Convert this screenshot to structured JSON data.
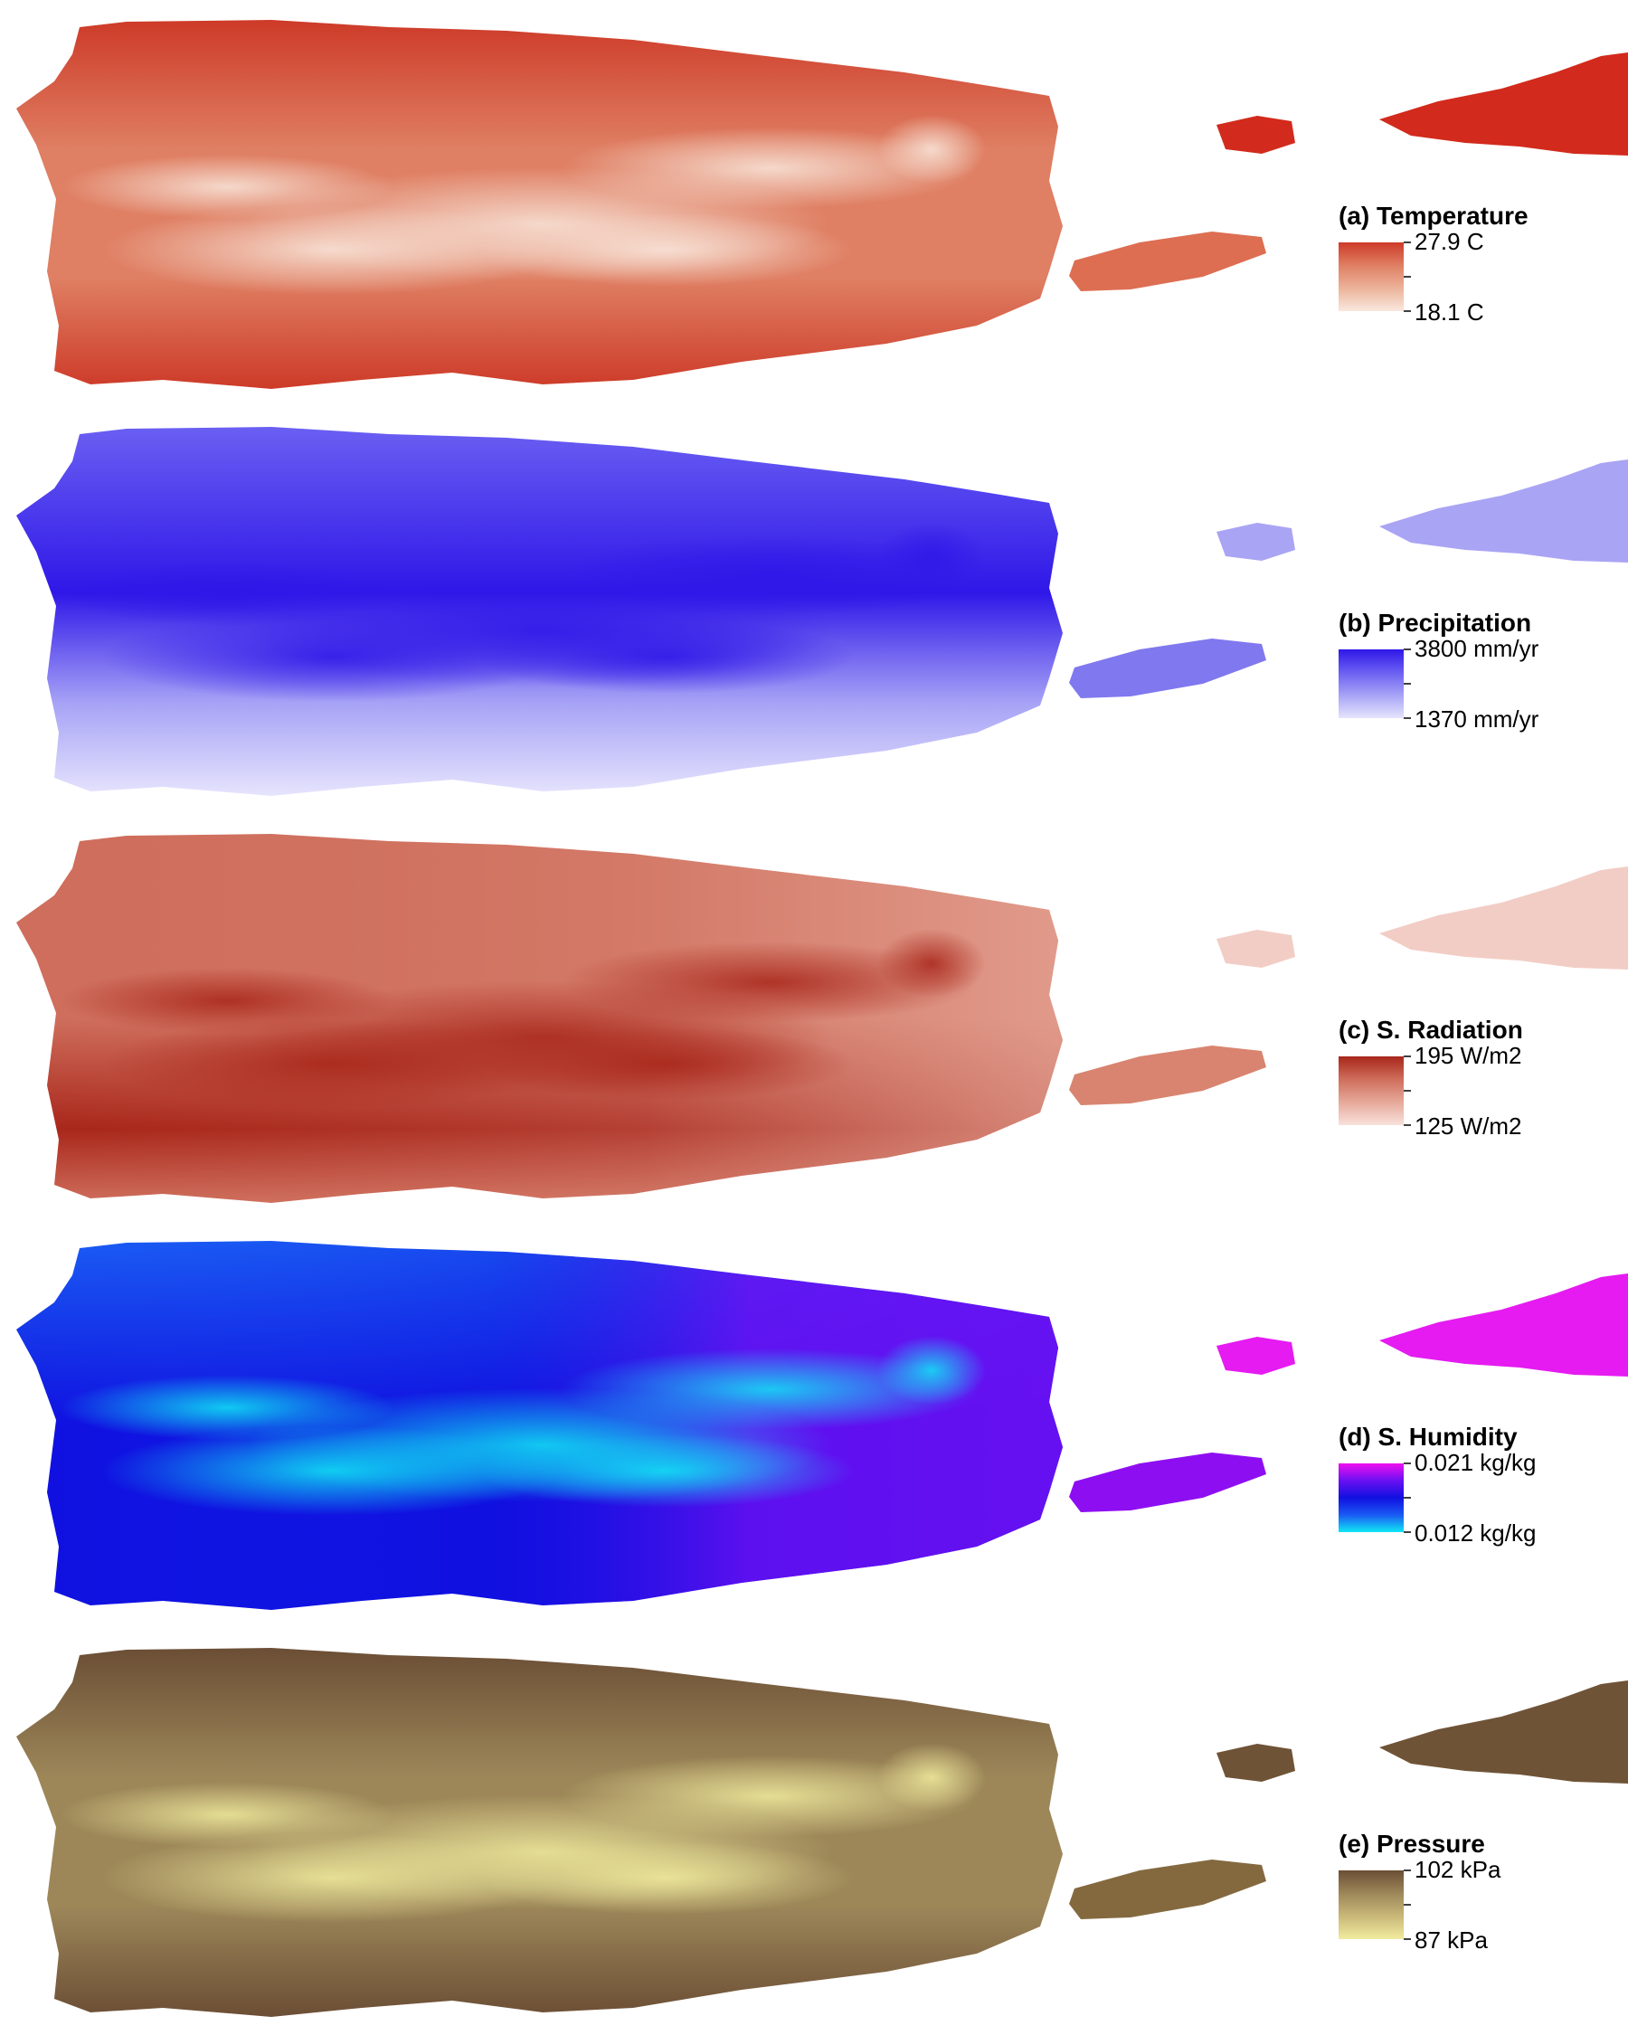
{
  "panels": [
    {
      "key": "temperature",
      "title": "(a) Temperature",
      "max_label": "27.9 C",
      "min_label": "18.1 C",
      "ramp": [
        "#f9e8dd",
        "#ecb39a",
        "#df7f63",
        "#cd3a28"
      ],
      "island_high": "#d22a1c",
      "island_low": "#dd6e52"
    },
    {
      "key": "precipitation",
      "title": "(b) Precipitation",
      "max_label": "3800 mm/yr",
      "min_label": "1370 mm/yr",
      "ramp": [
        "#e6e4fd",
        "#a7a3f6",
        "#6a5ff2",
        "#2f17e8"
      ],
      "island_high": "#aaa4f4",
      "island_low": "#8078ee"
    },
    {
      "key": "radiation",
      "title": "(c) S. Radiation",
      "max_label": "195 W/m2",
      "min_label": "125 W/m2",
      "ramp": [
        "#f8e1dc",
        "#e6a99a",
        "#cf6e5c",
        "#a8261a"
      ],
      "island_high": "#f2cdc5",
      "island_low": "#d98470"
    },
    {
      "key": "humidity",
      "title": "(d) S. Humidity",
      "max_label": "0.021 kg/kg",
      "min_label": "0.012 kg/kg",
      "ramp": [
        "#10e8f4",
        "#1a5af3",
        "#1010e0",
        "#6a10f2",
        "#f010f0"
      ],
      "island_high": "#e51bf1",
      "island_low": "#8e0ef2"
    },
    {
      "key": "pressure",
      "title": "(e) Pressure",
      "max_label": "102 kPa",
      "min_label": "87 kPa",
      "ramp": [
        "#f1ec9e",
        "#c9b879",
        "#9d8759",
        "#6b4e35"
      ],
      "island_high": "#6f5336",
      "island_low": "#84693f"
    }
  ]
}
